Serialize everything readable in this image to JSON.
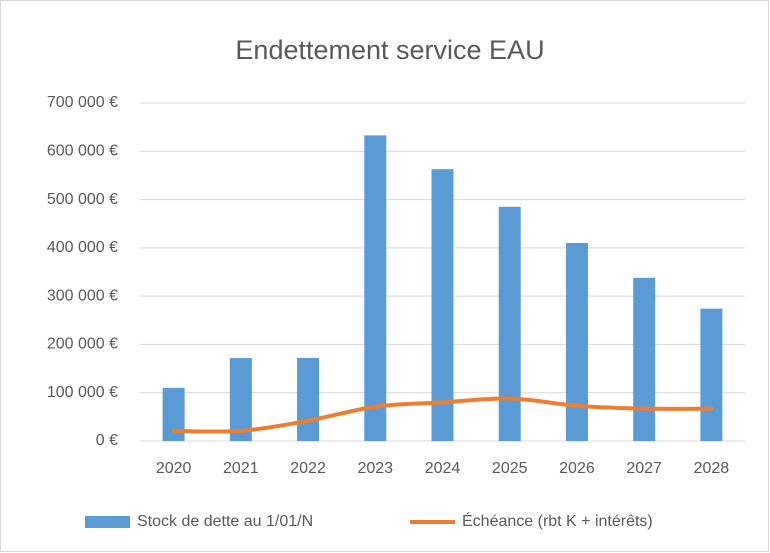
{
  "chart_data": {
    "type": "bar",
    "title": "Endettement service EAU",
    "categories": [
      "2020",
      "2021",
      "2022",
      "2023",
      "2024",
      "2025",
      "2026",
      "2027",
      "2028"
    ],
    "series": [
      {
        "name": "Stock de dette au 1/01/N",
        "type": "bar",
        "color": "#5b9bd5",
        "values": [
          110000,
          172000,
          172000,
          633000,
          563000,
          485000,
          410000,
          338000,
          274000
        ]
      },
      {
        "name": "Échéance (rbt K + intérêts)",
        "type": "line",
        "color": "#ed7d31",
        "values": [
          21000,
          21000,
          42000,
          71000,
          80000,
          88000,
          73000,
          67000,
          67000
        ]
      }
    ],
    "ylim": [
      0,
      700000
    ],
    "yticks": [
      {
        "value": 0,
        "label": "0 €"
      },
      {
        "value": 100000,
        "label": "100 000 €"
      },
      {
        "value": 200000,
        "label": "200 000 €"
      },
      {
        "value": 300000,
        "label": "300 000 €"
      },
      {
        "value": 400000,
        "label": "400 000 €"
      },
      {
        "value": 500000,
        "label": "500 000 €"
      },
      {
        "value": 600000,
        "label": "600 000 €"
      },
      {
        "value": 700000,
        "label": "700 000 €"
      }
    ],
    "grid": true,
    "legend": "bottom"
  }
}
